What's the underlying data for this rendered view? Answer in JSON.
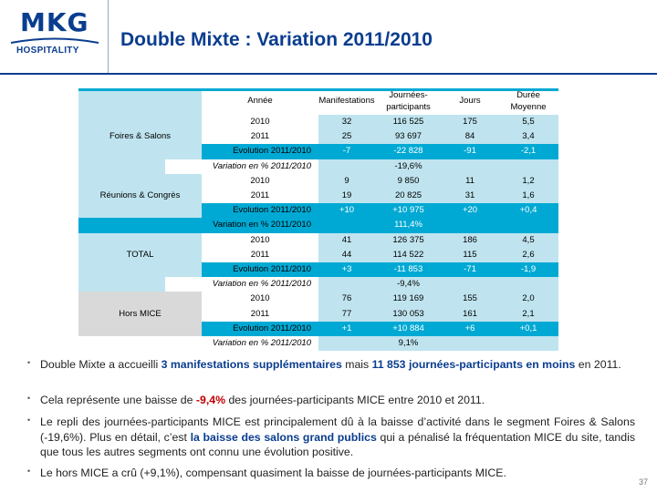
{
  "header": {
    "logo_main": "MKG",
    "logo_sub": "HOSPITALITY",
    "title": "Double Mixte : Variation 2011/2010"
  },
  "table": {
    "columns": [
      "Année",
      "Manifestations",
      "Journées-participants",
      "Jours",
      "Durée Moyenne"
    ],
    "groups": [
      {
        "name": "Foires & Salons",
        "rows": [
          {
            "label": "2010",
            "manif": "32",
            "jp": "116 525",
            "jours": "175",
            "duree": "5,5"
          },
          {
            "label": "2011",
            "manif": "25",
            "jp": "93 697",
            "jours": "84",
            "duree": "3,4"
          },
          {
            "label": "Evolution 2011/2010",
            "manif": "-7",
            "jp": "-22 828",
            "jours": "-91",
            "duree": "-2,1"
          }
        ],
        "variation_label": "Variation en % 2011/2010",
        "variation_value": "-19,6%"
      },
      {
        "name": "Réunions & Congrès",
        "rows": [
          {
            "label": "2010",
            "manif": "9",
            "jp": "9 850",
            "jours": "11",
            "duree": "1,2"
          },
          {
            "label": "2011",
            "manif": "19",
            "jp": "20 825",
            "jours": "31",
            "duree": "1,6"
          },
          {
            "label": "Evolution 2011/2010",
            "manif": "+10",
            "jp": "+10 975",
            "jours": "+20",
            "duree": "+0,4"
          }
        ],
        "variation_label": "Variation en % 2011/2010",
        "variation_value": "111,4%"
      },
      {
        "name": "TOTAL",
        "rows": [
          {
            "label": "2010",
            "manif": "41",
            "jp": "126 375",
            "jours": "186",
            "duree": "4,5"
          },
          {
            "label": "2011",
            "manif": "44",
            "jp": "114 522",
            "jours": "115",
            "duree": "2,6"
          },
          {
            "label": "Evolution 2011/2010",
            "manif": "+3",
            "jp": "-11 853",
            "jours": "-71",
            "duree": "-1,9"
          }
        ],
        "variation_label": "Variation en % 2011/2010",
        "variation_value": "-9,4%"
      },
      {
        "name": "Hors MICE",
        "rows": [
          {
            "label": "2010",
            "manif": "76",
            "jp": "119 169",
            "jours": "155",
            "duree": "2,0"
          },
          {
            "label": "2011",
            "manif": "77",
            "jp": "130 053",
            "jours": "161",
            "duree": "2,1"
          },
          {
            "label": "Evolution 2011/2010",
            "manif": "+1",
            "jp": "+10 884",
            "jours": "+6",
            "duree": "+0,1"
          }
        ],
        "variation_label": "Variation en % 2011/2010",
        "variation_value": "9,1%"
      }
    ]
  },
  "colors": {
    "brand_blue": "#0a3d8f",
    "light_blue": "#bfe4ef",
    "cyan": "#00a9d4",
    "gray_label": "#d9d9d9",
    "highlight_red": "#c00000"
  },
  "bullets": [
    {
      "parts": [
        {
          "text": "Double Mixte a accueilli ",
          "style": "plain"
        },
        {
          "text": "3 manifestations supplémentaires",
          "style": "hl"
        },
        {
          "text": " mais ",
          "style": "plain"
        },
        {
          "text": "11 853 journées-participants en moins",
          "style": "hl"
        },
        {
          "text": " en 2011.",
          "style": "plain"
        }
      ]
    },
    {
      "parts": [
        {
          "text": "Cela représente une baisse de ",
          "style": "plain"
        },
        {
          "text": "-9,4%",
          "style": "red"
        },
        {
          "text": " des journées-participants MICE entre 2010 et 2011.",
          "style": "plain"
        }
      ]
    },
    {
      "parts": [
        {
          "text": "Le repli des journées-participants MICE est principalement dû à la baisse d’activité dans le segment Foires & Salons (-19,6%). Plus en détail, c’est ",
          "style": "plain"
        },
        {
          "text": "la baisse des salons grand publics",
          "style": "hl"
        },
        {
          "text": " qui a pénalisé la fréquentation MICE du site, tandis que tous les autres segments ont connu une évolution positive.",
          "style": "plain"
        }
      ]
    },
    {
      "parts": [
        {
          "text": "Le hors MICE a crû (+9,1%), compensant  quasiment la baisse de journées-participants MICE.",
          "style": "plain"
        }
      ]
    }
  ],
  "page_number": "37"
}
